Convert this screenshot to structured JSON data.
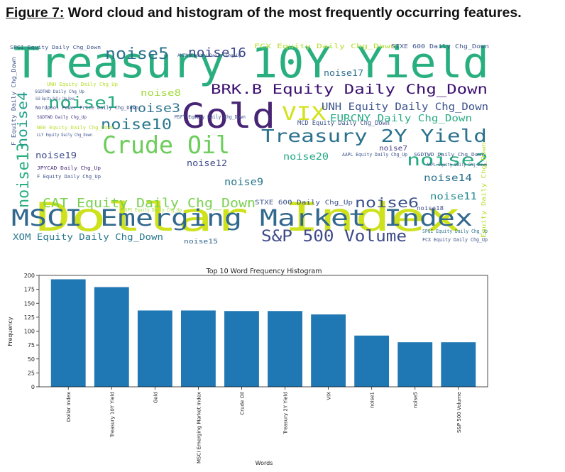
{
  "figure": {
    "label": "Figure 7:",
    "caption": " Word cloud and histogram of the most frequently occurring features."
  },
  "wordcloud": {
    "words": [
      {
        "text": "Dollar Index",
        "color": "#cde11d"
      },
      {
        "text": "Treasury 10Y Yield",
        "color": "#29af7f"
      },
      {
        "text": "MSCI Emerging Market Index",
        "color": "#31688e"
      },
      {
        "text": "Gold",
        "color": "#482475"
      },
      {
        "text": "Crude Oil",
        "color": "#6ccd5a"
      },
      {
        "text": "Treasury 2Y Yield",
        "color": "#2c728e"
      },
      {
        "text": "BRK.B Equity Daily Chg_Down",
        "color": "#3b0f70"
      },
      {
        "text": "S&P 500 Volume",
        "color": "#3e4a89"
      },
      {
        "text": "VIX",
        "color": "#d2e21b"
      },
      {
        "text": "noise1",
        "color": "#27ad81"
      },
      {
        "text": "noise5",
        "color": "#2d708e"
      },
      {
        "text": "noise10",
        "color": "#2a788e"
      },
      {
        "text": "noise2",
        "color": "#25ab82"
      },
      {
        "text": "noise13",
        "color": "#29af7f"
      },
      {
        "text": "noise4",
        "color": "#1f9e89"
      },
      {
        "text": "CAT Equity Daily Chg_Down",
        "color": "#7ad151"
      },
      {
        "text": "noise6",
        "color": "#3b528b"
      },
      {
        "text": "noise3",
        "color": "#2c728e"
      },
      {
        "text": "noise16",
        "color": "#3e4989"
      },
      {
        "text": "UNH Equity Daily Chg_Down",
        "color": "#3b528b"
      },
      {
        "text": "XOM Equity Daily Chg_Down",
        "color": "#2a788e"
      },
      {
        "text": "EURCNY Daily Chg_Down",
        "color": "#25ab82"
      },
      {
        "text": "noise9",
        "color": "#2a788e"
      },
      {
        "text": "noise12",
        "color": "#3e4a89"
      },
      {
        "text": "noise20",
        "color": "#22a785"
      },
      {
        "text": "noise14",
        "color": "#2c728e"
      },
      {
        "text": "noise11",
        "color": "#238a8d"
      },
      {
        "text": "noise19",
        "color": "#3e4a89"
      },
      {
        "text": "noise17",
        "color": "#2d708e"
      },
      {
        "text": "noise8",
        "color": "#a0da39"
      },
      {
        "text": "noise7",
        "color": "#443983"
      },
      {
        "text": "noise15",
        "color": "#33638d"
      },
      {
        "text": "noise18",
        "color": "#3e4a89"
      },
      {
        "text": "STXE 600 Daily Chg_Up",
        "color": "#3b528b"
      },
      {
        "text": "FCX Equity Daily Chg_Down",
        "color": "#b5de2b"
      },
      {
        "text": "STXE 600 Daily Chg_Down",
        "color": "#3b528b"
      },
      {
        "text": "SPGI Equity Daily Chg_Down",
        "color": "#3b528b"
      },
      {
        "text": "F Equity Daily Chg_Down",
        "color": "#3b528b"
      },
      {
        "text": "JPYCAD Daily Chg_Up",
        "color": "#472d7b"
      },
      {
        "text": "F Equity Daily Chg_Up",
        "color": "#3b528b"
      },
      {
        "text": "Nordpool Power Price Daily Chg_Down",
        "color": "#3e4989"
      },
      {
        "text": "SGDTWD Daily Chg_Up",
        "color": "#443983"
      },
      {
        "text": "MCD Equity Daily Chg_Down",
        "color": "#3b528b"
      },
      {
        "text": "AAPL Equity Daily Chg_Up",
        "color": "#3b528b"
      },
      {
        "text": "SGDTWD Daily Chg_Down",
        "color": "#3b528b"
      },
      {
        "text": "SPGI Equity Daily Chg_Up",
        "color": "#2c728e"
      },
      {
        "text": "FCX Equity Daily Chg_Up",
        "color": "#3b528b"
      },
      {
        "text": "UPS Equity Daily Chg_Up",
        "color": "#a0da39"
      },
      {
        "text": "LLY Equity Daily Chg_Down",
        "color": "#3b528b"
      },
      {
        "text": "NEE Equity Daily Chg_Down",
        "color": "#b5de2b"
      },
      {
        "text": "UNH Equity Daily Chg_Up",
        "color": "#b5de2b"
      },
      {
        "text": "AMZN Equity Daily Chg_Up",
        "color": "#3b528b"
      },
      {
        "text": "MSFT Equity Daily Chg_Down",
        "color": "#3b528b"
      },
      {
        "text": "SLB Equity Daily Chg_Down",
        "color": "#3b528b"
      },
      {
        "text": "AAPL Equity Daily Chg_Down",
        "color": "#3b528b"
      },
      {
        "text": "Equity Daily Chg_Down",
        "color": "#b5de2b"
      },
      {
        "text": "SGDTWD Daily Chg_Up",
        "color": "#3b528b"
      }
    ]
  },
  "chart_data": {
    "type": "bar",
    "title": "Top 10 Word Frequency Histogram",
    "xlabel": "Words",
    "ylabel": "Frequency",
    "categories": [
      "Dollar Index",
      "Treasury 10Y Yield",
      "Gold",
      "MSCI Emerging Market Index",
      "Crude Oil",
      "Treasury 2Y Yield",
      "VIX",
      "noise1",
      "noise5",
      "S&P 500 Volume"
    ],
    "values": [
      193,
      179,
      137,
      137,
      136,
      136,
      130,
      92,
      80,
      80
    ],
    "ylim": [
      0,
      200
    ],
    "yticks": [
      0,
      25,
      50,
      75,
      100,
      125,
      150,
      175,
      200
    ],
    "bar_color": "#1f77b4",
    "grid": false
  }
}
